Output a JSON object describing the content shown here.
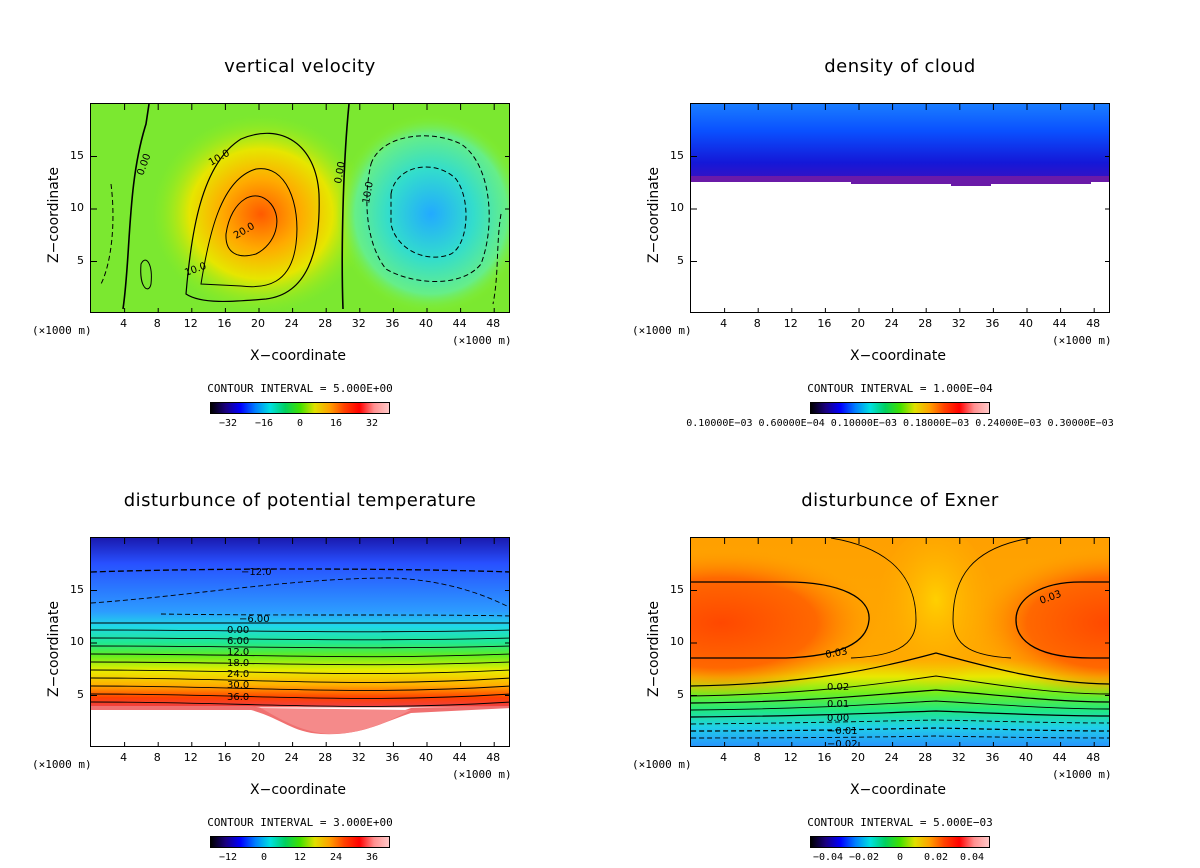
{
  "chart_data": [
    {
      "type": "heatmap",
      "title": "vertical velocity",
      "xlabel": "X−coordinate",
      "ylabel": "Z−coordinate",
      "x_unit": "(×1000 m)",
      "xticks": [
        "4",
        "8",
        "12",
        "16",
        "20",
        "24",
        "28",
        "32",
        "36",
        "40",
        "44",
        "48"
      ],
      "yticks": [
        "5",
        "10",
        "15"
      ],
      "xlim": [
        0,
        50
      ],
      "ylim": [
        0,
        20
      ],
      "contour_interval": "CONTOUR INTERVAL = 5.000E+00",
      "colorbar_ticks": [
        "−32",
        "−16",
        "0",
        "16",
        "32"
      ],
      "contour_labels": [
        "0.00",
        "10.0",
        "20.0",
        "10.0",
        "0.00",
        "10.0"
      ]
    },
    {
      "type": "heatmap",
      "title": "density of cloud",
      "xlabel": "X−coordinate",
      "ylabel": "Z−coordinate",
      "x_unit": "(×1000 m)",
      "xticks": [
        "4",
        "8",
        "12",
        "16",
        "20",
        "24",
        "28",
        "32",
        "36",
        "40",
        "44",
        "48"
      ],
      "yticks": [
        "5",
        "10",
        "15"
      ],
      "xlim": [
        0,
        50
      ],
      "ylim": [
        0,
        20
      ],
      "contour_interval": "CONTOUR INTERVAL = 1.000E−04",
      "colorbar_ticks": [
        "0.10000E−03 0.60000E−04 0.10000E−03 0.18000E−03 0.24000E−03 0.30000E−03"
      ],
      "contour_labels": []
    },
    {
      "type": "heatmap",
      "title": "disturbunce of potential temperature",
      "xlabel": "X−coordinate",
      "ylabel": "Z−coordinate",
      "x_unit": "(×1000 m)",
      "xticks": [
        "4",
        "8",
        "12",
        "16",
        "20",
        "24",
        "28",
        "32",
        "36",
        "40",
        "44",
        "48"
      ],
      "yticks": [
        "5",
        "10",
        "15"
      ],
      "xlim": [
        0,
        50
      ],
      "ylim": [
        0,
        20
      ],
      "contour_interval": "CONTOUR INTERVAL = 3.000E+00",
      "colorbar_ticks": [
        "−12",
        "0",
        "12",
        "24",
        "36"
      ],
      "contour_labels": [
        "−12.0",
        "−6.00",
        "0.00",
        "6.00",
        "12.0",
        "18.0",
        "24.0",
        "30.0",
        "36.0"
      ]
    },
    {
      "type": "heatmap",
      "title": "disturbunce of Exner",
      "xlabel": "X−coordinate",
      "ylabel": "Z−coordinate",
      "x_unit": "(×1000 m)",
      "xticks": [
        "4",
        "8",
        "12",
        "16",
        "20",
        "24",
        "28",
        "32",
        "36",
        "40",
        "44",
        "48"
      ],
      "yticks": [
        "5",
        "10",
        "15"
      ],
      "xlim": [
        0,
        50
      ],
      "ylim": [
        0,
        20
      ],
      "contour_interval": "CONTOUR INTERVAL = 5.000E−03",
      "colorbar_ticks": [
        "−0.04",
        "−0.02",
        "0",
        "0.02",
        "0.04"
      ],
      "contour_labels": [
        "0.03",
        "0.03",
        "0.02",
        "0.01",
        "0.00",
        "−0.01",
        "−0.02"
      ]
    }
  ]
}
